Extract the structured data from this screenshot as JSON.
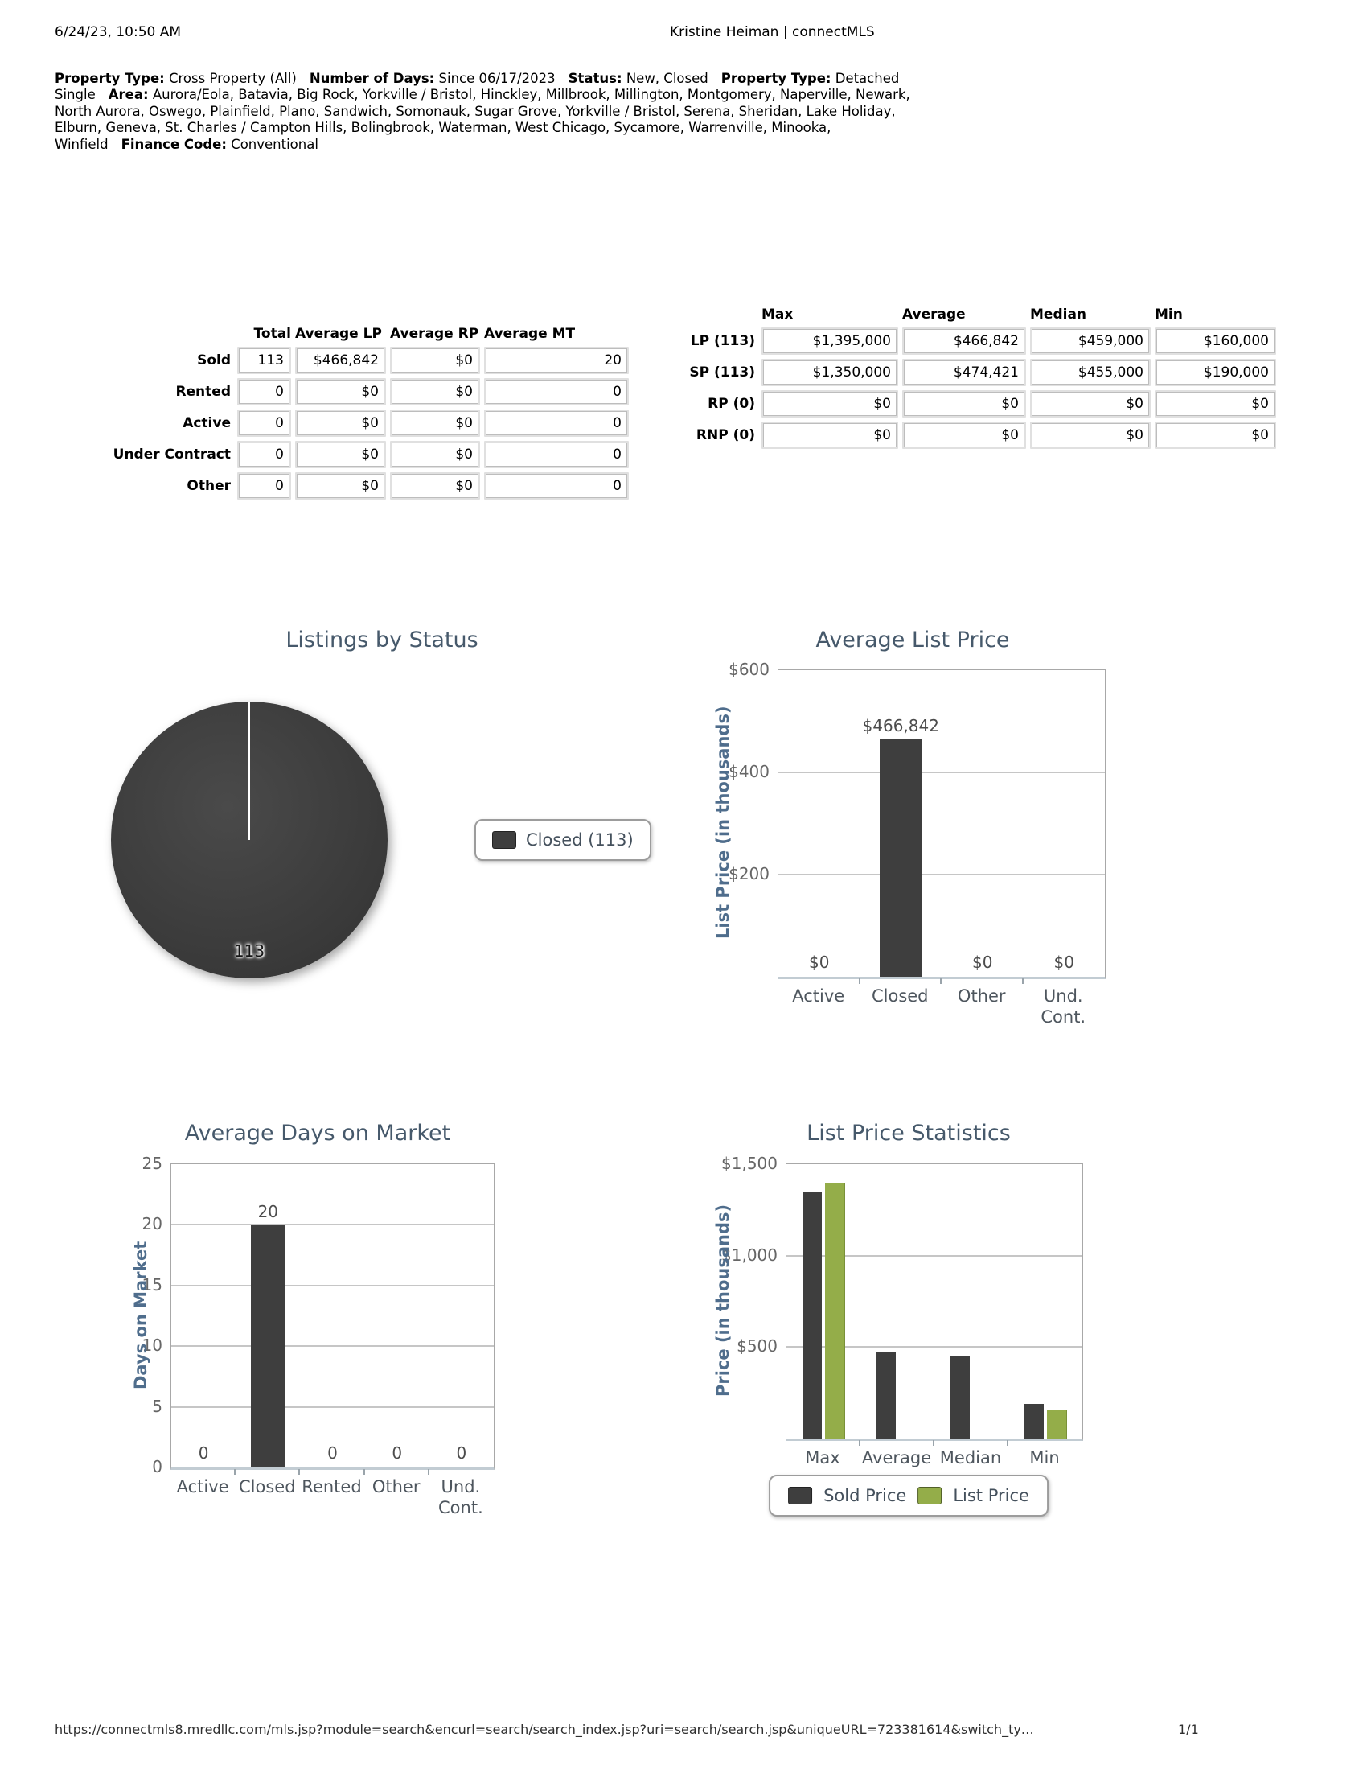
{
  "page": {
    "printed_at": "6/24/23, 10:50 AM",
    "header_title": "Kristine Heiman | connectMLS",
    "footer_url": "https://connectmls8.mredllc.com/mls.jsp?module=search&encurl=search/search_index.jsp?uri=search/search.jsp&uniqueURL=723381614&switch_ty…",
    "footer_page": "1/1"
  },
  "criteria": {
    "segments": [
      {
        "label": "Property Type:",
        "value": "Cross Property (All)"
      },
      {
        "label": "Number of Days:",
        "value": "Since 06/17/2023"
      },
      {
        "label": "Status:",
        "value": "New, Closed"
      },
      {
        "label": "Property Type:",
        "value": "Detached Single"
      },
      {
        "label": "Area:",
        "value": "Aurora/Eola, Batavia, Big Rock, Yorkville / Bristol, Hinckley, Millbrook, Millington, Montgomery, Naperville, Newark, North Aurora, Oswego, Plainfield, Plano, Sandwich, Somonauk, Sugar Grove, Yorkville / Bristol, Serena, Sheridan, Lake Holiday, Elburn, Geneva, St. Charles / Campton Hills, Bolingbrook, Waterman, West Chicago, Sycamore, Warrenville, Minooka, Winfield"
      },
      {
        "label": "Finance Code:",
        "value": "Conventional"
      }
    ]
  },
  "status_table": {
    "columns": [
      "Total",
      "Average LP",
      "Average RP",
      "Average MT"
    ],
    "rows": [
      {
        "label": "Sold",
        "values": [
          "113",
          "$466,842",
          "$0",
          "20"
        ]
      },
      {
        "label": "Rented",
        "values": [
          "0",
          "$0",
          "$0",
          "0"
        ]
      },
      {
        "label": "Active",
        "values": [
          "0",
          "$0",
          "$0",
          "0"
        ]
      },
      {
        "label": "Under Contract",
        "values": [
          "0",
          "$0",
          "$0",
          "0"
        ]
      },
      {
        "label": "Other",
        "values": [
          "0",
          "$0",
          "$0",
          "0"
        ]
      }
    ]
  },
  "price_table": {
    "columns": [
      "Max",
      "Average",
      "Median",
      "Min"
    ],
    "rows": [
      {
        "label": "LP (113)",
        "values": [
          "$1,395,000",
          "$466,842",
          "$459,000",
          "$160,000"
        ]
      },
      {
        "label": "SP (113)",
        "values": [
          "$1,350,000",
          "$474,421",
          "$455,000",
          "$190,000"
        ]
      },
      {
        "label": "RP (0)",
        "values": [
          "$0",
          "$0",
          "$0",
          "$0"
        ]
      },
      {
        "label": "RNP (0)",
        "values": [
          "$0",
          "$0",
          "$0",
          "$0"
        ]
      }
    ]
  },
  "colors": {
    "bar_dark": "#3e3e3e",
    "bar_green": "#94ad49",
    "chart_title": "#46596b",
    "axis_title": "#4f6d8c"
  },
  "chart_data": [
    {
      "type": "pie",
      "title": "Listings by Status",
      "slices": [
        {
          "label": "Closed",
          "count": 113,
          "value_label": "113",
          "color": "#3e3e3e",
          "percent": 100
        }
      ],
      "legend": [
        {
          "label": "Closed (113)",
          "color": "#3e3e3e"
        }
      ],
      "legend_position": "right"
    },
    {
      "type": "bar",
      "title": "Average List Price",
      "ylabel": "List Price (in thousands)",
      "categories": [
        "Active",
        "Closed",
        "Other",
        "Und.\nCont."
      ],
      "values": [
        0,
        466842,
        0,
        0
      ],
      "bar_labels": [
        "$0",
        "$466,842",
        "$0",
        "$0"
      ],
      "yticks": [
        {
          "label": "$600",
          "value": 600000
        },
        {
          "label": "$400",
          "value": 400000
        },
        {
          "label": "$200",
          "value": 200000
        }
      ],
      "ylim": [
        0,
        600000
      ],
      "grid": true,
      "bar_color": "#3e3e3e"
    },
    {
      "type": "bar",
      "title": "Average Days on Market",
      "ylabel": "Days on Market",
      "categories": [
        "Active",
        "Closed",
        "Rented",
        "Other",
        "Und.\nCont."
      ],
      "values": [
        0,
        20,
        0,
        0,
        0
      ],
      "bar_labels": [
        "0",
        "20",
        "0",
        "0",
        "0"
      ],
      "yticks": [
        {
          "label": "25",
          "value": 25
        },
        {
          "label": "20",
          "value": 20
        },
        {
          "label": "15",
          "value": 15
        },
        {
          "label": "10",
          "value": 10
        },
        {
          "label": "5",
          "value": 5
        },
        {
          "label": "0",
          "value": 0
        }
      ],
      "ylim": [
        0,
        25
      ],
      "grid": true,
      "bar_color": "#3e3e3e"
    },
    {
      "type": "bar",
      "title": "List Price Statistics",
      "ylabel": "Price (in thousands)",
      "categories": [
        "Max",
        "Average",
        "Median",
        "Min"
      ],
      "series": [
        {
          "name": "Sold Price",
          "color": "#3e3e3e",
          "values": [
            1350000,
            474421,
            455000,
            190000
          ]
        },
        {
          "name": "List Price",
          "color": "#94ad49",
          "values": [
            1395000,
            null,
            null,
            160000
          ]
        }
      ],
      "yticks": [
        {
          "label": "$1,500",
          "value": 1500000
        },
        {
          "label": "$1,000",
          "value": 1000000
        },
        {
          "label": "$500",
          "value": 500000
        }
      ],
      "ylim": [
        0,
        1500000
      ],
      "grid": true,
      "legend_position": "bottom"
    }
  ]
}
